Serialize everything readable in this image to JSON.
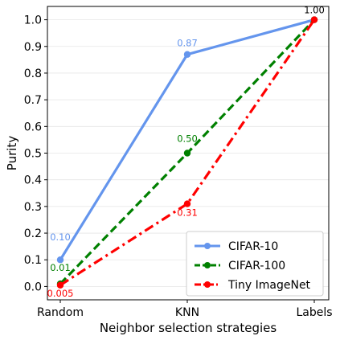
{
  "chart_data": {
    "type": "line",
    "xlabel": "Neighbor selection strategies",
    "ylabel": "Purity",
    "categories": [
      "Random",
      "KNN",
      "Labels"
    ],
    "ylim": [
      -0.05,
      1.05
    ],
    "yticks": [
      0.0,
      0.1,
      0.2,
      0.3,
      0.4,
      0.5,
      0.6,
      0.7,
      0.8,
      0.9,
      1.0
    ],
    "grid": true,
    "legend_position": "bottom-right",
    "series": [
      {
        "name": "CIFAR-10",
        "values": [
          0.1,
          0.87,
          1.0
        ],
        "color": "#6495ED",
        "linestyle": "solid",
        "labels": [
          "0.10",
          "0.87",
          "1.00"
        ],
        "label_colors": [
          "#6495ED",
          "#6495ED",
          "#000000"
        ]
      },
      {
        "name": "CIFAR-100",
        "values": [
          0.01,
          0.5,
          1.0
        ],
        "color": "#008000",
        "linestyle": "dashed",
        "labels": [
          "0.01",
          "0.50",
          ""
        ],
        "label_colors": [
          "#008000",
          "#008000",
          "#008000"
        ]
      },
      {
        "name": "Tiny ImageNet",
        "values": [
          0.005,
          0.31,
          1.0
        ],
        "color": "#FF0000",
        "linestyle": "dashdot",
        "labels": [
          "0.005",
          "0.31",
          ""
        ],
        "label_colors": [
          "#FF0000",
          "#FF0000",
          "#FF0000"
        ]
      }
    ]
  }
}
